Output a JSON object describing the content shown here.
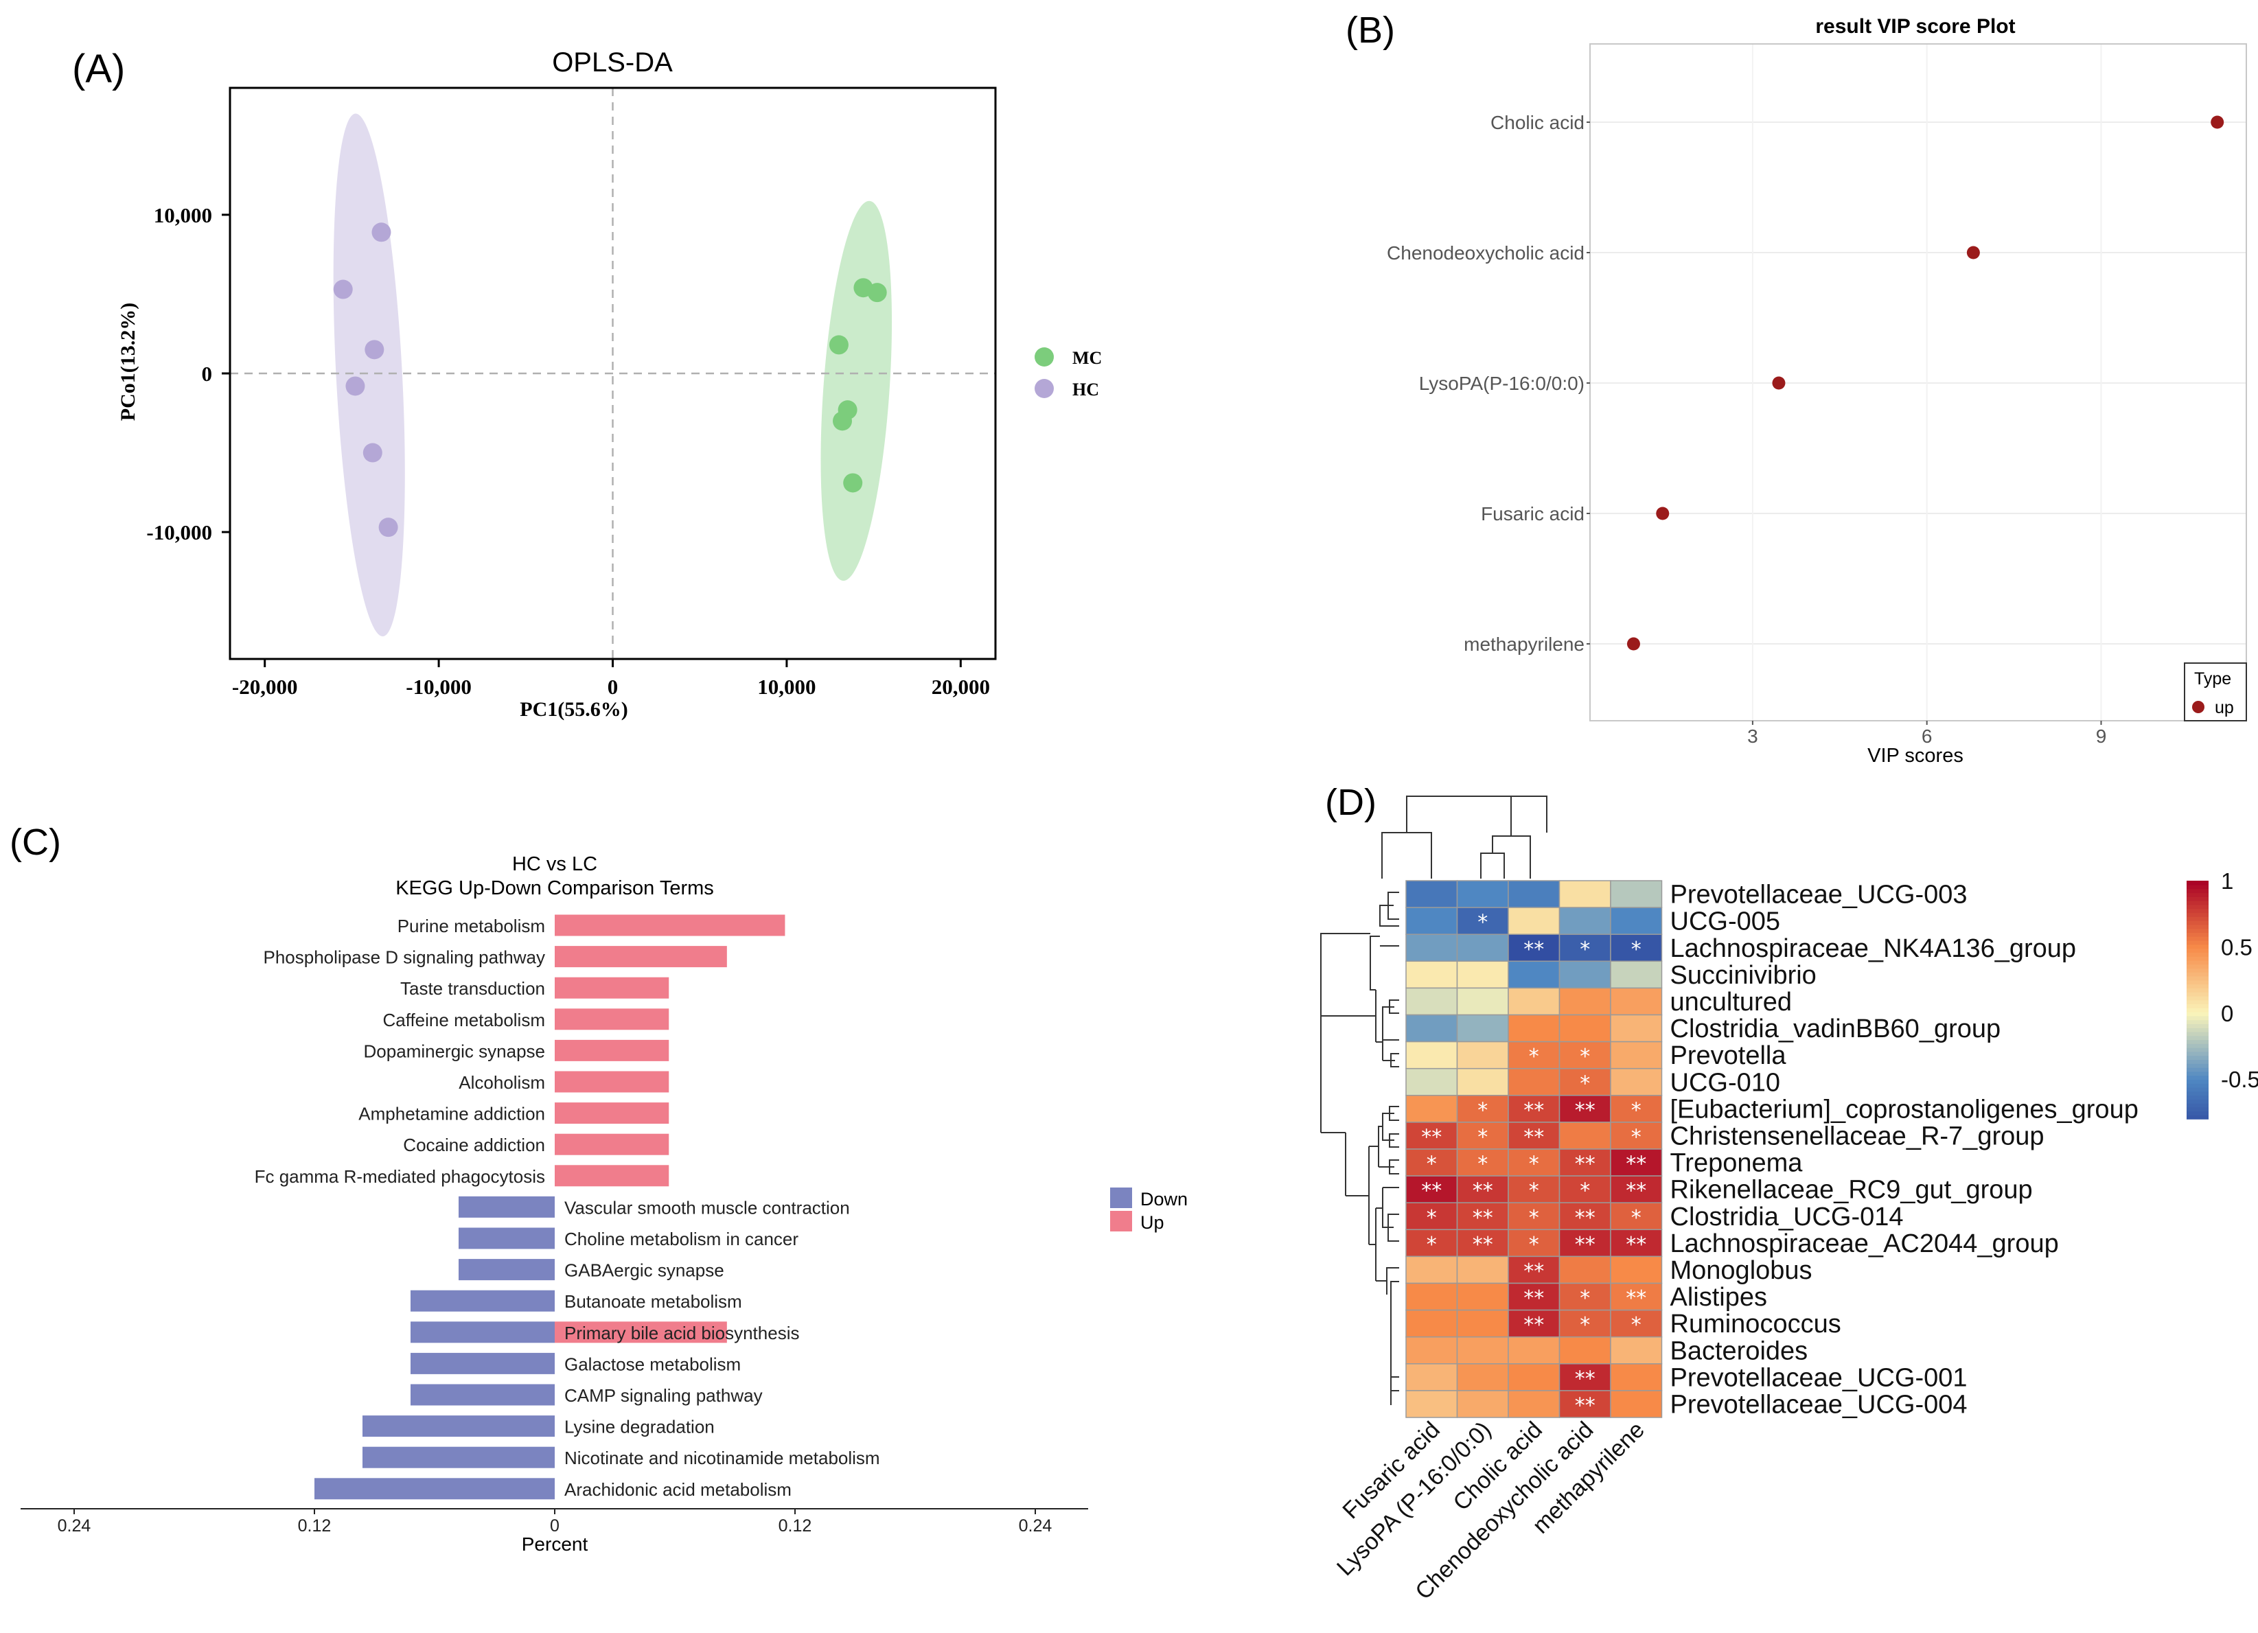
{
  "panel_labels": {
    "a": "(A)",
    "b": "(B)",
    "c": "(C)",
    "d": "(D)"
  },
  "colors": {
    "mc": "#7ccd7c",
    "hc": "#b4a7d6",
    "vip": "#9b1b1b",
    "up": "#f07d8c",
    "down": "#7b84c0"
  },
  "chart_data": [
    {
      "id": "A",
      "type": "scatter",
      "title": "OPLS-DA",
      "xlabel": "PC1(55.6%)",
      "ylabel": "PCo1(13.2%)",
      "xlim": [
        -22000,
        22000
      ],
      "ylim": [
        -18000,
        18000
      ],
      "xticks": [
        -20000,
        -10000,
        0,
        10000,
        20000
      ],
      "xtick_labels": [
        "-20,000",
        "-10,000",
        "0",
        "10,000",
        "20,000"
      ],
      "yticks": [
        10000,
        0,
        -10000
      ],
      "ytick_labels": [
        "10,000",
        "0",
        "-10,000"
      ],
      "legend": [
        {
          "name": "MC",
          "color": "#7ccd7c"
        },
        {
          "name": "HC",
          "color": "#b4a7d6"
        }
      ],
      "series": [
        {
          "name": "MC",
          "color": "#7ccd7c",
          "points": [
            [
              14400,
              5400
            ],
            [
              15200,
              5100
            ],
            [
              13000,
              1800
            ],
            [
              13500,
              -2300
            ],
            [
              13200,
              -3000
            ],
            [
              13800,
              -6900
            ]
          ],
          "ellipse": {
            "cx": 14000,
            "cy": -1100,
            "rx": 1900,
            "ry": 12000,
            "angle": 4
          }
        },
        {
          "name": "HC",
          "color": "#b4a7d6",
          "points": [
            [
              -13300,
              8900
            ],
            [
              -15500,
              5300
            ],
            [
              -13700,
              1500
            ],
            [
              -14800,
              -800
            ],
            [
              -13800,
              -5000
            ],
            [
              -12900,
              -9700
            ]
          ],
          "ellipse": {
            "cx": -14000,
            "cy": -100,
            "rx": 1900,
            "ry": 16500,
            "angle": -3
          }
        }
      ]
    },
    {
      "id": "B",
      "type": "scatter",
      "title": "result VIP score Plot",
      "xlabel": "VIP scores",
      "xlim": [
        0.2,
        11.5
      ],
      "xticks": [
        3,
        6,
        9
      ],
      "categories": [
        "Cholic acid",
        "Chenodeoxycholic acid",
        "LysoPA(P-16:0/0:0)",
        "Fusaric acid",
        "methapyrilene"
      ],
      "values": [
        11.0,
        6.8,
        3.45,
        1.45,
        0.95
      ],
      "legend": {
        "title": "Type",
        "items": [
          "up"
        ]
      }
    },
    {
      "id": "C",
      "type": "bar",
      "title": "HC vs LC",
      "subtitle": "KEGG Up-Down Comparison Terms",
      "xlabel": "Percent",
      "xlim": [
        -0.26,
        0.26
      ],
      "xticks": [
        -0.24,
        -0.12,
        0,
        0.12,
        0.24
      ],
      "xtick_labels": [
        "0.24",
        "0.12",
        "0",
        "0.12",
        "0.24"
      ],
      "legend": [
        "Down",
        "Up"
      ],
      "categories": [
        "Purine metabolism",
        "Phospholipase D signaling pathway",
        "Taste transduction",
        "Caffeine metabolism",
        "Dopaminergic synapse",
        "Alcoholism",
        "Amphetamine addiction",
        "Cocaine addiction",
        "Fc gamma R-mediated phagocytosis",
        "Vascular smooth muscle contraction",
        "Choline metabolism in cancer",
        "GABAergic synapse",
        "Butanoate metabolism",
        "Primary bile acid biosynthesis",
        "Galactose metabolism",
        "CAMP signaling pathway",
        "Lysine degradation",
        "Nicotinate and nicotinamide metabolism",
        "Arachidonic acid metabolism"
      ],
      "series": [
        {
          "name": "Up",
          "values": [
            0.115,
            0.086,
            0.057,
            0.057,
            0.057,
            0.057,
            0.057,
            0.057,
            0.057,
            0,
            0,
            0,
            0,
            0.086,
            0,
            0,
            0,
            0,
            0
          ]
        },
        {
          "name": "Down",
          "values": [
            0,
            0,
            0,
            0,
            0,
            0,
            0,
            0,
            0,
            0.048,
            0.048,
            0.048,
            0.072,
            0.072,
            0.072,
            0.072,
            0.096,
            0.096,
            0.12
          ]
        }
      ]
    },
    {
      "id": "D",
      "type": "heatmap",
      "columns": [
        "Fusaric acid",
        "LysoPA (P-16:0/0:0)",
        "Cholic acid",
        "Chenodeoxycholic acid",
        "methapyrilene"
      ],
      "rows": [
        "Prevotellaceae_UCG-003",
        "UCG-005",
        "Lachnospiraceae_NK4A136_group",
        "Succinivibrio",
        "uncultured",
        "Clostridia_vadinBB60_group",
        "Prevotella",
        "UCG-010",
        "[Eubacterium]_coprostanoligenes_group",
        "Christensenellaceae_R-7_group",
        "Treponema",
        "Rikenellaceae_RC9_gut_group",
        "Clostridia_UCG-014",
        "Lachnospiraceae_AC2044_group",
        "Monoglobus",
        "Alistipes",
        "Ruminococcus",
        "Bacteroides",
        "Prevotellaceae_UCG-001",
        "Prevotellaceae_UCG-004"
      ],
      "values": [
        [
          -0.6,
          -0.5,
          -0.55,
          0.1,
          -0.2
        ],
        [
          -0.5,
          -0.7,
          0.1,
          -0.4,
          -0.5
        ],
        [
          -0.4,
          -0.4,
          -0.85,
          -0.75,
          -0.8
        ],
        [
          0.05,
          0.05,
          -0.5,
          -0.4,
          -0.15
        ],
        [
          -0.1,
          -0.05,
          0.2,
          0.45,
          0.4
        ],
        [
          -0.4,
          -0.3,
          0.5,
          0.5,
          0.3
        ],
        [
          0.05,
          0.15,
          0.55,
          0.55,
          0.35
        ],
        [
          -0.1,
          0.1,
          0.55,
          0.6,
          0.3
        ],
        [
          0.45,
          0.6,
          0.75,
          0.9,
          0.6
        ],
        [
          0.75,
          0.6,
          0.75,
          0.55,
          0.6
        ],
        [
          0.7,
          0.6,
          0.6,
          0.75,
          0.92
        ],
        [
          0.92,
          0.8,
          0.7,
          0.75,
          0.85
        ],
        [
          0.8,
          0.75,
          0.65,
          0.75,
          0.65
        ],
        [
          0.75,
          0.75,
          0.65,
          0.85,
          0.85
        ],
        [
          0.3,
          0.3,
          0.8,
          0.55,
          0.5
        ],
        [
          0.5,
          0.5,
          0.85,
          0.65,
          0.55
        ],
        [
          0.5,
          0.5,
          0.85,
          0.65,
          0.65
        ],
        [
          0.4,
          0.4,
          0.4,
          0.5,
          0.3
        ],
        [
          0.3,
          0.45,
          0.5,
          0.85,
          0.5
        ],
        [
          0.25,
          0.35,
          0.45,
          0.75,
          0.5
        ]
      ],
      "stars": [
        [
          "",
          "",
          "",
          "",
          ""
        ],
        [
          "",
          "*",
          "",
          "",
          ""
        ],
        [
          "",
          "",
          "**",
          "*",
          "*"
        ],
        [
          "",
          "",
          "",
          "",
          ""
        ],
        [
          "",
          "",
          "",
          "",
          ""
        ],
        [
          "",
          "",
          "",
          "",
          ""
        ],
        [
          "",
          "",
          "*",
          "*",
          ""
        ],
        [
          "",
          "",
          "",
          "*",
          ""
        ],
        [
          "",
          "*",
          "**",
          "**",
          "*"
        ],
        [
          "**",
          "*",
          "**",
          "",
          "*"
        ],
        [
          "*",
          "*",
          "*",
          "**",
          "**"
        ],
        [
          "**",
          "**",
          "*",
          "*",
          "**"
        ],
        [
          "*",
          "**",
          "*",
          "**",
          "*"
        ],
        [
          "*",
          "**",
          "*",
          "**",
          "**"
        ],
        [
          "",
          "",
          "**",
          "",
          ""
        ],
        [
          "",
          "",
          "**",
          "*",
          "**"
        ],
        [
          "",
          "",
          "**",
          "*",
          "*"
        ],
        [
          "",
          "",
          "",
          "",
          ""
        ],
        [
          "",
          "",
          "",
          "**",
          ""
        ],
        [
          "",
          "",
          "",
          "**",
          ""
        ]
      ],
      "colorbar": {
        "ticks": [
          1,
          0.5,
          0,
          -0.5
        ],
        "tick_labels": [
          "1",
          "0.5",
          "0",
          "-0.5"
        ],
        "range": [
          -0.8,
          1
        ]
      }
    }
  ]
}
